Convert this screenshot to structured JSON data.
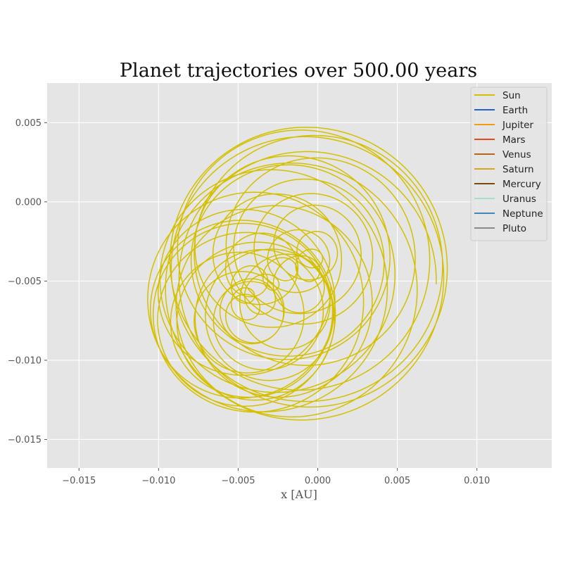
{
  "chart_data": {
    "type": "line",
    "title": "Planet trajectories over 500.00 years",
    "xlabel": "x [AU]",
    "ylabel": "",
    "xlim": [
      -0.017,
      0.0147
    ],
    "ylim": [
      -0.0168,
      0.0075
    ],
    "x_ticks": [
      -0.015,
      -0.01,
      -0.005,
      0.0,
      0.005,
      0.01
    ],
    "x_tick_labels": [
      "−0.015",
      "−0.010",
      "−0.005",
      "0.000",
      "0.005",
      "0.010"
    ],
    "y_ticks": [
      0.005,
      0.0,
      -0.005,
      -0.01,
      -0.015
    ],
    "y_tick_labels": [
      "0.005",
      "0.000",
      "−0.005",
      "−0.010",
      "−0.015"
    ],
    "grid": true,
    "legend_position": "top-right",
    "series": [
      {
        "name": "Sun",
        "color": "#d4c000",
        "trajectory": {
          "center": [
            -0.0025,
            -0.0052
          ],
          "radius_range": [
            0.0007,
            0.0089
          ],
          "revolutions": 38,
          "wobble_amplitude": 0.004,
          "wobble_revolutions": 2.6
        }
      },
      {
        "name": "Earth",
        "color": "#1f5fe0"
      },
      {
        "name": "Jupiter",
        "color": "#f39c12"
      },
      {
        "name": "Mars",
        "color": "#e8481c"
      },
      {
        "name": "Venus",
        "color": "#b8651a"
      },
      {
        "name": "Saturn",
        "color": "#d9a520"
      },
      {
        "name": "Mercury",
        "color": "#7a4a12"
      },
      {
        "name": "Uranus",
        "color": "#9fe0d0"
      },
      {
        "name": "Neptune",
        "color": "#3f88b8"
      },
      {
        "name": "Pluto",
        "color": "#8a8a8a"
      }
    ]
  }
}
